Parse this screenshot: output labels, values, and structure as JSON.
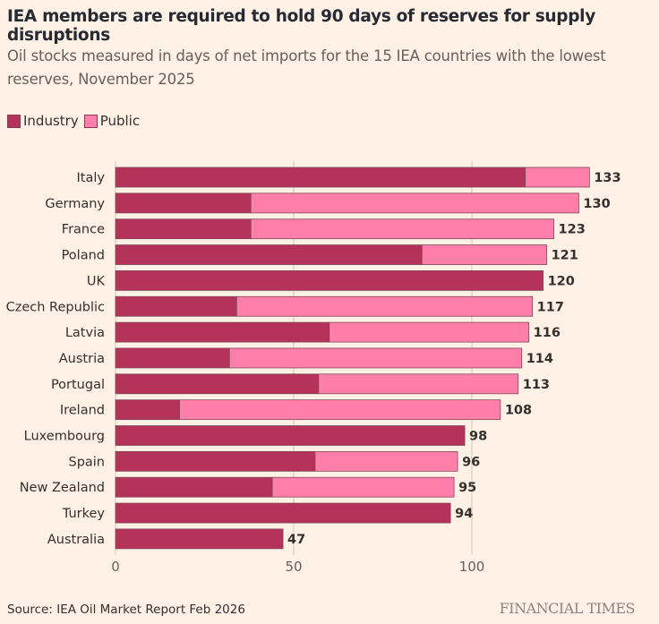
{
  "header": {
    "title": "IEA members are required to hold 90 days of reserves for supply disruptions",
    "subtitle": "Oil stocks measured in days of net imports for the 15 IEA countries with the lowest reserves, November 2025"
  },
  "footer": {
    "source": "Source: IEA Oil Market Report Feb 2026",
    "brand": "FINANCIAL TIMES"
  },
  "chart_data": {
    "type": "bar",
    "orientation": "horizontal",
    "stacked": true,
    "title": "IEA members are required to hold 90 days of reserves for supply disruptions",
    "subtitle": "Oil stocks measured in days of net imports for the 15 IEA countries with the lowest reserves, November 2025",
    "xlabel": "",
    "ylabel": "",
    "xlim": [
      0,
      133
    ],
    "xticks": [
      0,
      50,
      100
    ],
    "grid": true,
    "legend_position": "top-left",
    "categories": [
      "Italy",
      "Germany",
      "France",
      "Poland",
      "UK",
      "Czech Republic",
      "Latvia",
      "Austria",
      "Portugal",
      "Ireland",
      "Luxembourg",
      "Spain",
      "New Zealand",
      "Turkey",
      "Australia"
    ],
    "series": [
      {
        "name": "Industry",
        "color": "#B5325B",
        "values": [
          115,
          38,
          38,
          86,
          120,
          34,
          60,
          32,
          57,
          18,
          98,
          56,
          44,
          94,
          47
        ]
      },
      {
        "name": "Public",
        "color": "#FF7FAA",
        "values": [
          18,
          92,
          85,
          35,
          0,
          83,
          56,
          82,
          56,
          90,
          0,
          40,
          51,
          0,
          0
        ]
      }
    ],
    "totals": [
      133,
      130,
      123,
      121,
      120,
      117,
      116,
      114,
      113,
      108,
      98,
      96,
      95,
      94,
      47
    ]
  }
}
